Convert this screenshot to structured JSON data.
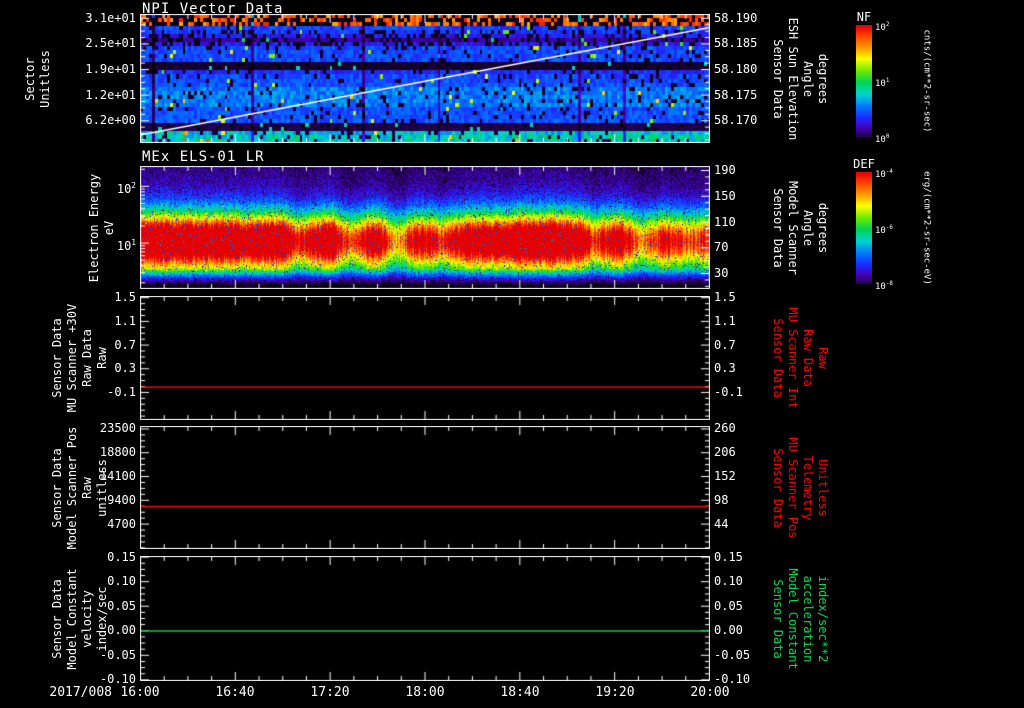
{
  "screen": {
    "background": "#000000"
  },
  "x_axis": {
    "date": "2017/008",
    "ticks": [
      "16:00",
      "16:40",
      "17:20",
      "18:00",
      "18:40",
      "19:20",
      "20:00"
    ]
  },
  "chart_data": [
    {
      "type": "heatmap",
      "title": "NPI Vector Data",
      "left_label_lines": [
        "Sector",
        "Unitless"
      ],
      "left_ticks": [
        "3.1e+01",
        "2.5e+01",
        "1.9e+01",
        "1.2e+01",
        "6.2e+00"
      ],
      "right_label_lines": [
        "Sensor Data",
        "ESH Sun Elevation",
        "Angle",
        "degrees"
      ],
      "right_ticks": [
        "58.190",
        "58.185",
        "58.180",
        "58.175",
        "58.170"
      ],
      "right_label_color": "#ffffff",
      "right_axis_range": [
        58.1905,
        58.1665
      ],
      "colorbar": {
        "name": "NF",
        "ticks": [
          "10^2",
          "10^1",
          "10^0"
        ],
        "units": "cnts/(cm**2-sr-sec)"
      },
      "rows": 32,
      "row_levels": [
        0.44,
        0.44,
        0.4,
        0.06,
        0.06,
        0.27,
        0.27,
        0.27,
        0.27,
        0.32,
        0.32,
        0.32,
        0.32,
        0.32,
        0.27,
        0.26,
        0.26,
        0.22,
        0.04,
        0.04,
        0.26,
        0.26,
        0.26,
        0.26,
        0.2,
        0.12,
        0.2,
        0.24,
        0.25,
        0.1,
        0.1,
        0.1
      ],
      "red_band_rows": [
        29,
        30,
        31
      ],
      "speckle_rows": [
        24,
        25,
        26,
        27
      ],
      "overlay_line": {
        "label": "sun elevation angle",
        "values": [
          58.168,
          58.188
        ],
        "color": "#ffffff"
      }
    },
    {
      "type": "heatmap",
      "title": "MEx ELS-01 LR",
      "left_label_lines": [
        "Electron Energy",
        "eV"
      ],
      "left_ticks": [
        "10^2",
        "10^1"
      ],
      "left_ticks_exp": true,
      "log_range": [
        0.2,
        2.35
      ],
      "energy_range_ev": [
        1.6,
        220
      ],
      "right_label_lines": [
        "Sensor Data",
        "Model Scanner",
        "Angle",
        "degrees"
      ],
      "right_ticks": [
        "190",
        "150",
        "110",
        "70",
        "30"
      ],
      "right_label_color": "#ffffff",
      "colorbar": {
        "name": "DEF",
        "ticks": [
          "10^-4",
          "10^-6",
          "10^-8"
        ],
        "units": "erg/(cm**2-sr-sec-eV)"
      },
      "peak_energy_log10": 1.05,
      "peak_sigma": 0.33,
      "amplitude_keyframes": {
        "x": [
          0,
          0.1,
          0.18,
          0.24,
          0.28,
          0.33,
          0.37,
          0.41,
          0.45,
          0.49,
          0.53,
          0.57,
          0.62,
          0.67,
          0.72,
          0.77,
          0.8,
          0.84,
          0.88,
          0.92,
          0.96,
          1.0
        ],
        "a": [
          0.97,
          0.95,
          0.9,
          0.95,
          0.75,
          0.9,
          0.65,
          0.85,
          0.6,
          0.8,
          0.7,
          0.85,
          0.9,
          0.95,
          0.97,
          0.9,
          0.7,
          0.85,
          0.62,
          0.75,
          0.68,
          0.72
        ]
      }
    },
    {
      "type": "line",
      "left_label_lines": [
        "Sensor Data",
        "MU Scanner +30V",
        "Raw Data",
        "Raw"
      ],
      "left_ticks": [
        "1.5",
        "1.1",
        "0.7",
        "0.3",
        "-0.1"
      ],
      "right_label_lines": [
        "Sensor Data",
        "MU Scanner Int",
        "Raw Data",
        "Raw"
      ],
      "right_ticks": [
        "1.5",
        "1.1",
        "0.7",
        "0.3",
        "-0.1"
      ],
      "right_label_color": "#ff0000",
      "line_color": "#ff0000",
      "x": [
        "16:00",
        "20:00"
      ],
      "y": [
        0.0,
        0.0
      ],
      "tick_top_frac": 0.01,
      "tick_step_frac": 0.1925,
      "line_frac": 0.735
    },
    {
      "type": "line",
      "left_label_lines": [
        "Sensor Data",
        "Model Scanner Pos",
        "Raw",
        "unitless"
      ],
      "left_ticks": [
        "23500",
        "18800",
        "14100",
        "9400",
        "4700"
      ],
      "right_label_lines": [
        "Sensor Data",
        "MU Scanner Pos",
        "Telemetry",
        "Unitless"
      ],
      "right_ticks": [
        "260",
        "206",
        "152",
        "98",
        "44"
      ],
      "right_label_color": "#ff0000",
      "line_color": "#ff0000",
      "x": [
        "16:00",
        "20:00"
      ],
      "y": [
        8400,
        8400
      ],
      "tick_top_frac": 0.02,
      "tick_step_frac": 0.195,
      "line_frac": 0.655
    },
    {
      "type": "line",
      "left_label_lines": [
        "Sensor Data",
        "Model Constant",
        "velocity",
        "index/sec"
      ],
      "left_ticks": [
        "0.15",
        "0.10",
        "0.05",
        "0.00",
        "-0.05",
        "-0.10"
      ],
      "right_label_lines": [
        "Sensor Data",
        "Model Constant",
        "acceleration",
        "index/sec**2"
      ],
      "right_ticks": [
        "0.15",
        "0.10",
        "0.05",
        "0.00",
        "-0.05",
        "-0.10"
      ],
      "right_label_color": "#00dd55",
      "line_color": "#00c850",
      "x": [
        "16:00",
        "20:00"
      ],
      "y": [
        0.0,
        0.0
      ],
      "tick_top_frac": 0.005,
      "tick_step_frac": 0.198,
      "line_frac": 0.6
    }
  ]
}
